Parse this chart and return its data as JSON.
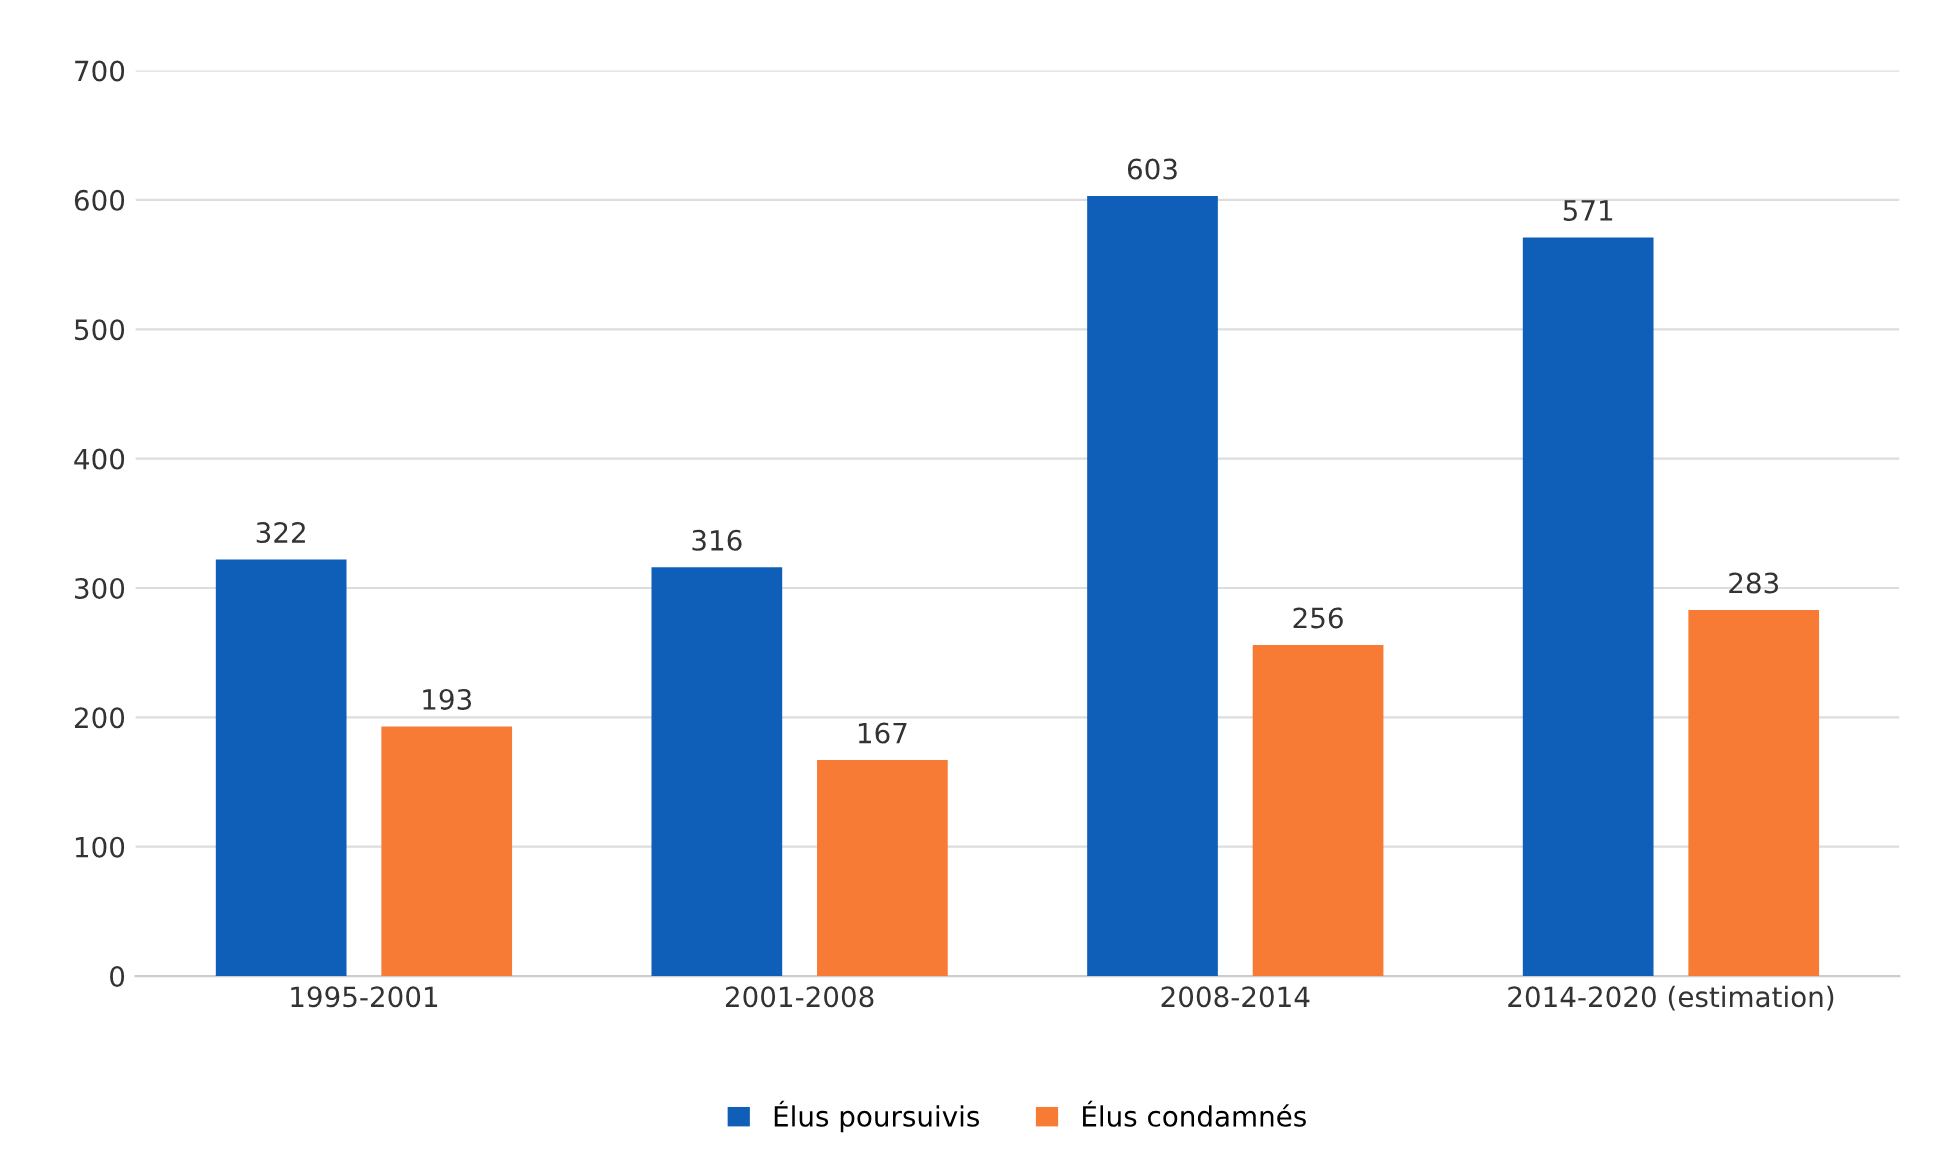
{
  "chart_data": {
    "type": "bar",
    "categories": [
      "1995-2001",
      "2001-2008",
      "2008-2014",
      "2014-2020 (estimation)"
    ],
    "series": [
      {
        "name": "Élus poursuivis",
        "color": "#0f5fb8",
        "values": [
          322,
          316,
          603,
          571
        ]
      },
      {
        "name": "Élus condamnés",
        "color": "#f77a35",
        "values": [
          193,
          167,
          256,
          283
        ]
      }
    ],
    "ylim": [
      0,
      700
    ],
    "yticks": [
      0,
      100,
      200,
      300,
      400,
      500,
      600,
      700
    ],
    "grid": "y",
    "legend": "bottom",
    "data_labels": true
  }
}
